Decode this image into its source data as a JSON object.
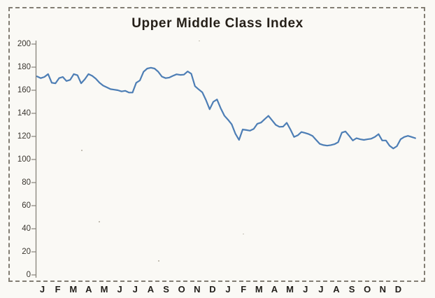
{
  "chart_data": {
    "type": "line",
    "title": "Upper Middle Class Index",
    "xlabel": "",
    "ylabel": "",
    "x_categories": [
      "J",
      "F",
      "M",
      "A",
      "M",
      "J",
      "J",
      "A",
      "S",
      "O",
      "N",
      "D",
      "J",
      "F",
      "M",
      "A",
      "M",
      "J",
      "J",
      "A",
      "S",
      "O",
      "N",
      "D"
    ],
    "y_ticks": [
      0,
      20,
      40,
      60,
      80,
      100,
      120,
      140,
      160,
      180,
      200
    ],
    "ylim": [
      0,
      200
    ],
    "grid": false,
    "legend": "none",
    "series": [
      {
        "name": "Upper Middle Class Index",
        "sampling": "weekly, 2 years, 104 points",
        "values": [
          172,
          170.5,
          171.5,
          174,
          166.5,
          166,
          170.5,
          171.5,
          168,
          169,
          174,
          173,
          166,
          169.5,
          174,
          172.5,
          170,
          166.5,
          164,
          162.5,
          161,
          160.5,
          160,
          159,
          159.5,
          158,
          158,
          166.5,
          168.5,
          176,
          178.8,
          179.5,
          178.8,
          176,
          171.8,
          170.5,
          171,
          172.5,
          173.8,
          173.3,
          173.5,
          176.3,
          174.3,
          163.5,
          160.8,
          158.2,
          151.5,
          143.5,
          150,
          152,
          144.5,
          138,
          134.5,
          130.5,
          122.5,
          117,
          126,
          125.5,
          125,
          126.5,
          131,
          132,
          135,
          137.8,
          134,
          130,
          128.3,
          128.5,
          131.8,
          126,
          119.5,
          121,
          123.8,
          123,
          122,
          120.5,
          117,
          113.5,
          112.5,
          112,
          112.5,
          113.3,
          115,
          123.3,
          124.3,
          120.5,
          116.5,
          118.5,
          117.5,
          117,
          117.5,
          118,
          119.5,
          122,
          116.5,
          116.5,
          112,
          109.5,
          111.5,
          117.5,
          119.5,
          120.5,
          119.5,
          118.5
        ]
      }
    ]
  },
  "colors": {
    "line": "#4d7eb5",
    "axis": "#87827a",
    "tick": "#87827a",
    "title_text": "#262019",
    "label_text": "#3a362f",
    "month_text": "#211e1a",
    "frame": "#6f695e",
    "background": "#faf9f5"
  }
}
